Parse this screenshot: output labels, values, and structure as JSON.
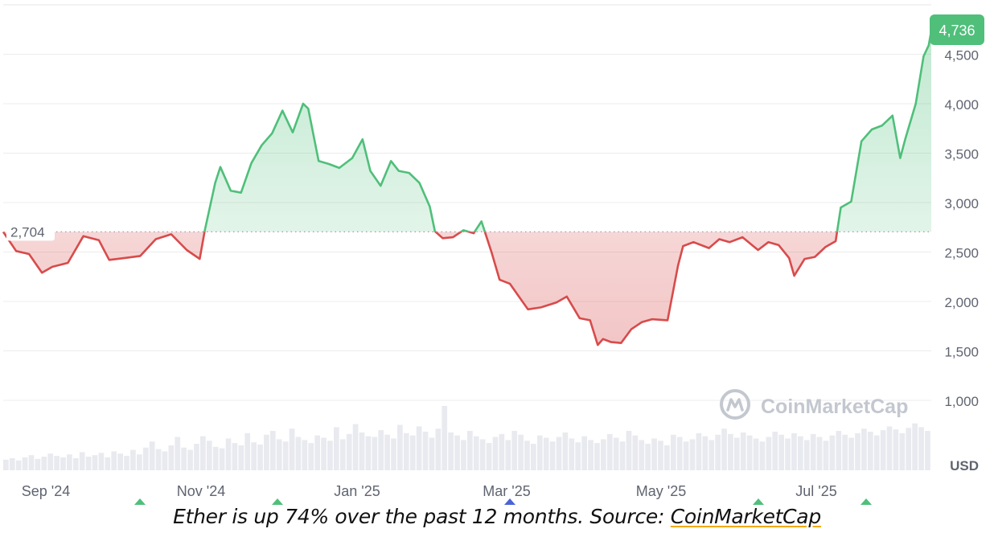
{
  "chart_data": {
    "type": "line",
    "xlabel": "",
    "ylabel": "",
    "y_unit_label": "USD",
    "ylim": [
      1000,
      4736
    ],
    "y_ticks": [
      1000,
      1500,
      2000,
      2500,
      3000,
      3500,
      4000,
      4500
    ],
    "y_tick_labels": [
      "1,000",
      "1,500",
      "2,000",
      "2,500",
      "3,000",
      "3,500",
      "4,000",
      "4,500"
    ],
    "x_tick_labels": [
      "Sep '24",
      "Nov '24",
      "Jan '25",
      "Mar '25",
      "May '25",
      "Jul '25"
    ],
    "baseline_value": 2704,
    "baseline_label": "2,704",
    "current_value": 4736,
    "current_label": "4,736",
    "watermark": "CoinMarketCap",
    "colors": {
      "up": "#4fbf7a",
      "down": "#d84b4b",
      "current_badge": "#4fbf7a",
      "grid": "#ececec",
      "volume": "#e8eaef"
    },
    "series": [
      {
        "x": [
          "2024-08-20",
          "2024-08-25",
          "2024-08-30",
          "2024-09-04",
          "2024-09-08",
          "2024-09-14",
          "2024-09-20",
          "2024-09-26",
          "2024-09-30",
          "2024-10-06",
          "2024-10-12",
          "2024-10-18",
          "2024-10-24",
          "2024-10-30",
          "2024-11-04",
          "2024-11-06",
          "2024-11-10",
          "2024-11-12",
          "2024-11-16",
          "2024-11-20",
          "2024-11-24",
          "2024-11-28",
          "2024-12-02",
          "2024-12-06",
          "2024-12-10",
          "2024-12-14",
          "2024-12-16",
          "2024-12-20",
          "2024-12-24",
          "2024-12-28",
          "2025-01-02",
          "2025-01-06",
          "2025-01-09",
          "2025-01-13",
          "2025-01-17",
          "2025-01-20",
          "2025-01-24",
          "2025-01-28",
          "2025-02-01",
          "2025-02-03",
          "2025-02-06",
          "2025-02-10",
          "2025-02-14",
          "2025-02-18",
          "2025-02-21",
          "2025-02-25",
          "2025-02-28",
          "2025-03-04",
          "2025-03-08",
          "2025-03-11",
          "2025-03-16",
          "2025-03-22",
          "2025-03-26",
          "2025-03-31",
          "2025-04-04",
          "2025-04-07",
          "2025-04-09",
          "2025-04-12",
          "2025-04-16",
          "2025-04-20",
          "2025-04-24",
          "2025-04-28",
          "2025-05-04",
          "2025-05-08",
          "2025-05-10",
          "2025-05-14",
          "2025-05-20",
          "2025-05-24",
          "2025-05-28",
          "2025-06-02",
          "2025-06-08",
          "2025-06-12",
          "2025-06-16",
          "2025-06-20",
          "2025-06-22",
          "2025-06-26",
          "2025-06-30",
          "2025-07-04",
          "2025-07-08",
          "2025-07-10",
          "2025-07-14",
          "2025-07-18",
          "2025-07-22",
          "2025-07-26",
          "2025-07-30",
          "2025-08-02",
          "2025-08-04",
          "2025-08-08",
          "2025-08-11",
          "2025-08-13",
          "2025-08-14"
        ],
        "values": [
          2704,
          2510,
          2480,
          2290,
          2350,
          2390,
          2660,
          2620,
          2420,
          2440,
          2460,
          2630,
          2680,
          2520,
          2430,
          2720,
          3200,
          3360,
          3120,
          3100,
          3400,
          3580,
          3700,
          3930,
          3710,
          4000,
          3950,
          3420,
          3390,
          3350,
          3450,
          3640,
          3320,
          3170,
          3420,
          3320,
          3300,
          3200,
          2960,
          2710,
          2640,
          2650,
          2720,
          2690,
          2810,
          2490,
          2220,
          2180,
          2030,
          1920,
          1940,
          1990,
          2050,
          1830,
          1810,
          1560,
          1620,
          1590,
          1580,
          1720,
          1790,
          1820,
          1810,
          2360,
          2560,
          2600,
          2540,
          2630,
          2600,
          2650,
          2520,
          2600,
          2570,
          2440,
          2260,
          2430,
          2450,
          2550,
          2610,
          2950,
          3010,
          3620,
          3740,
          3780,
          3880,
          3450,
          3650,
          4000,
          4480,
          4590,
          4736
        ]
      }
    ],
    "volume": [
      14,
      16,
      13,
      17,
      20,
      15,
      18,
      22,
      19,
      17,
      21,
      16,
      24,
      18,
      20,
      23,
      17,
      25,
      22,
      19,
      27,
      21,
      30,
      38,
      28,
      25,
      33,
      44,
      30,
      27,
      35,
      45,
      39,
      31,
      29,
      42,
      36,
      33,
      49,
      37,
      34,
      47,
      52,
      41,
      38,
      55,
      44,
      40,
      36,
      46,
      43,
      39,
      57,
      41,
      48,
      61,
      50,
      45,
      44,
      53,
      47,
      42,
      60,
      49,
      46,
      58,
      51,
      43,
      55,
      85,
      50,
      46,
      40,
      52,
      45,
      41,
      36,
      44,
      48,
      40,
      52,
      47,
      39,
      35,
      46,
      43,
      38,
      44,
      50,
      42,
      37,
      45,
      40,
      36,
      41,
      48,
      43,
      38,
      52,
      46,
      40,
      35,
      42,
      39,
      33,
      47,
      44,
      38,
      41,
      49,
      45,
      40,
      47,
      55,
      48,
      43,
      50,
      46,
      42,
      38,
      44,
      51,
      47,
      42,
      49,
      45,
      40,
      48,
      44,
      39,
      46,
      52,
      47,
      43,
      49,
      55,
      51,
      46,
      53,
      58,
      54,
      49,
      56,
      62,
      57,
      52
    ]
  },
  "caption": {
    "text": "Ether is up 74% over the past 12 months. Source: ",
    "link": "CoinMarketCap"
  }
}
